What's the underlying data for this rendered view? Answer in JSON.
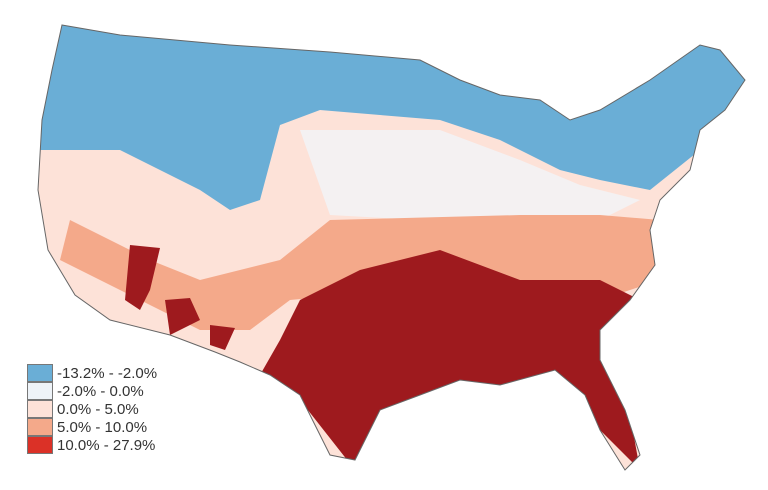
{
  "legend": {
    "items": [
      {
        "label": "-13.2% - -2.0%",
        "color": "#6aaed6"
      },
      {
        "label": "-2.0% - 0.0%",
        "color": "#eef3f8"
      },
      {
        "label": "0.0% - 5.0%",
        "color": "#fde2d8"
      },
      {
        "label": "5.0% - 10.0%",
        "color": "#f4a98a"
      },
      {
        "label": "10.0% - 27.9%",
        "color": "#db3127"
      }
    ]
  },
  "map": {
    "region": "contiguous United States counties",
    "dominant_color": "#9e1a1e",
    "pattern": "decrease (blue) across northern states; increase (red) across southern states"
  }
}
